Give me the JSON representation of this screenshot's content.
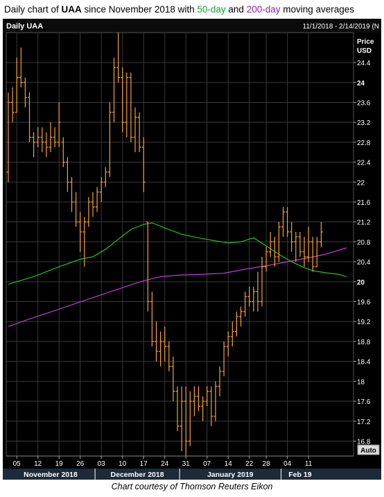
{
  "title": {
    "prefix": "Daily chart of ",
    "ticker": "UAA",
    "middle": " since November 2018 with ",
    "ma50_label": "50-day",
    "and_text": " and ",
    "ma200_label": "200-day",
    "suffix": " moving averages"
  },
  "caption": "Chart courtesy of Thomson Reuters Eikon",
  "panel": {
    "name": "Daily UAA",
    "range": "11/1/2018 - 2/14/2019 (N",
    "price_label": "Price",
    "currency_label": "USD",
    "auto_button": "Auto"
  },
  "colors": {
    "background": "#000000",
    "grid": "#3a3a3a",
    "bars": "#f7a431",
    "ma50": "#22c322",
    "ma200": "#c23ce0",
    "axis_text": "#ffffff"
  },
  "chart_data": {
    "type": "ohlc",
    "ylim": [
      16.5,
      25.0
    ],
    "y_ticks": [
      16.8,
      17.2,
      17.6,
      18,
      18.4,
      18.8,
      19.2,
      19.6,
      20,
      20.4,
      20.8,
      21.2,
      21.6,
      22,
      22.4,
      22.8,
      23.2,
      23.6,
      24,
      24.4
    ],
    "y_ticks_bold": [
      20,
      24
    ],
    "x_tick_labels": [
      "05",
      "12",
      "19",
      "26",
      "03",
      "10",
      "17",
      "24",
      "31",
      "07",
      "14",
      "22",
      "28",
      "04",
      "11"
    ],
    "x_tick_index": [
      2,
      7,
      12,
      17,
      22,
      27,
      32,
      37,
      42,
      47,
      52,
      57,
      61,
      66,
      71
    ],
    "month_labels": [
      {
        "label": "November 2018",
        "from": 0,
        "to": 20
      },
      {
        "label": "December 2018",
        "from": 21,
        "to": 40
      },
      {
        "label": "January 2019",
        "from": 41,
        "to": 64
      },
      {
        "label": "Feb 19",
        "from": 65,
        "to": 73
      }
    ],
    "bars": [
      {
        "o": 22.2,
        "h": 23.8,
        "l": 22.0,
        "c": 23.6
      },
      {
        "o": 23.6,
        "h": 23.9,
        "l": 23.2,
        "c": 23.4
      },
      {
        "o": 23.4,
        "h": 24.5,
        "l": 23.4,
        "c": 24.1
      },
      {
        "o": 24.1,
        "h": 24.7,
        "l": 23.9,
        "c": 24.0
      },
      {
        "o": 24.0,
        "h": 24.1,
        "l": 23.5,
        "c": 23.7
      },
      {
        "o": 23.7,
        "h": 23.8,
        "l": 22.8,
        "c": 22.9
      },
      {
        "o": 22.9,
        "h": 23.0,
        "l": 22.5,
        "c": 22.8
      },
      {
        "o": 22.8,
        "h": 23.1,
        "l": 22.7,
        "c": 22.9
      },
      {
        "o": 22.9,
        "h": 23.1,
        "l": 22.6,
        "c": 22.8
      },
      {
        "o": 22.8,
        "h": 23.0,
        "l": 22.5,
        "c": 22.7
      },
      {
        "o": 22.7,
        "h": 23.2,
        "l": 22.6,
        "c": 22.9
      },
      {
        "o": 22.9,
        "h": 23.1,
        "l": 22.7,
        "c": 22.8
      },
      {
        "o": 22.8,
        "h": 23.6,
        "l": 22.7,
        "c": 23.2
      },
      {
        "o": 22.8,
        "h": 22.9,
        "l": 22.3,
        "c": 22.4
      },
      {
        "o": 22.4,
        "h": 22.5,
        "l": 21.8,
        "c": 22.0
      },
      {
        "o": 22.0,
        "h": 22.1,
        "l": 21.4,
        "c": 21.6
      },
      {
        "o": 21.6,
        "h": 21.8,
        "l": 21.1,
        "c": 21.2
      },
      {
        "o": 21.2,
        "h": 21.4,
        "l": 20.6,
        "c": 21.0
      },
      {
        "o": 21.0,
        "h": 21.3,
        "l": 20.3,
        "c": 21.2
      },
      {
        "o": 21.2,
        "h": 21.7,
        "l": 21.1,
        "c": 21.6
      },
      {
        "o": 21.6,
        "h": 21.8,
        "l": 21.3,
        "c": 21.5
      },
      {
        "o": 21.5,
        "h": 21.9,
        "l": 21.4,
        "c": 21.8
      },
      {
        "o": 21.8,
        "h": 22.1,
        "l": 21.6,
        "c": 22.0
      },
      {
        "o": 22.0,
        "h": 22.3,
        "l": 21.9,
        "c": 22.2
      },
      {
        "o": 22.2,
        "h": 23.6,
        "l": 22.1,
        "c": 23.4
      },
      {
        "o": 23.4,
        "h": 24.5,
        "l": 23.2,
        "c": 24.3
      },
      {
        "o": 24.3,
        "h": 25.0,
        "l": 24.0,
        "c": 24.1
      },
      {
        "o": 24.1,
        "h": 24.3,
        "l": 23.0,
        "c": 23.2
      },
      {
        "o": 23.2,
        "h": 24.2,
        "l": 22.9,
        "c": 24.1
      },
      {
        "o": 24.1,
        "h": 24.2,
        "l": 22.8,
        "c": 22.9
      },
      {
        "o": 22.9,
        "h": 23.5,
        "l": 22.6,
        "c": 23.3
      },
      {
        "o": 23.3,
        "h": 23.4,
        "l": 22.6,
        "c": 22.7
      },
      {
        "o": 22.7,
        "h": 22.9,
        "l": 21.8,
        "c": 22.0
      },
      {
        "o": 21.2,
        "h": 21.2,
        "l": 19.4,
        "c": 19.6
      },
      {
        "o": 19.6,
        "h": 19.8,
        "l": 18.7,
        "c": 18.8
      },
      {
        "o": 18.8,
        "h": 19.2,
        "l": 18.4,
        "c": 18.6
      },
      {
        "o": 18.6,
        "h": 19.0,
        "l": 18.3,
        "c": 18.8
      },
      {
        "o": 18.8,
        "h": 19.1,
        "l": 18.4,
        "c": 18.7
      },
      {
        "o": 18.7,
        "h": 18.8,
        "l": 18.2,
        "c": 18.3
      },
      {
        "o": 18.3,
        "h": 18.5,
        "l": 17.6,
        "c": 17.8
      },
      {
        "o": 17.8,
        "h": 17.9,
        "l": 17.0,
        "c": 17.1
      },
      {
        "o": 17.1,
        "h": 17.9,
        "l": 16.6,
        "c": 17.6
      },
      {
        "o": 17.6,
        "h": 17.9,
        "l": 16.5,
        "c": 16.8
      },
      {
        "o": 16.8,
        "h": 17.8,
        "l": 16.7,
        "c": 17.6
      },
      {
        "o": 17.6,
        "h": 17.9,
        "l": 17.3,
        "c": 17.7
      },
      {
        "o": 17.7,
        "h": 17.9,
        "l": 17.4,
        "c": 17.5
      },
      {
        "o": 17.5,
        "h": 17.7,
        "l": 17.2,
        "c": 17.6
      },
      {
        "o": 17.6,
        "h": 17.9,
        "l": 17.5,
        "c": 17.8
      },
      {
        "o": 17.8,
        "h": 17.9,
        "l": 17.1,
        "c": 17.3
      },
      {
        "o": 17.3,
        "h": 18.0,
        "l": 17.2,
        "c": 17.9
      },
      {
        "o": 17.9,
        "h": 18.3,
        "l": 17.7,
        "c": 18.2
      },
      {
        "o": 18.2,
        "h": 18.8,
        "l": 18.1,
        "c": 18.7
      },
      {
        "o": 18.7,
        "h": 19.0,
        "l": 18.5,
        "c": 18.9
      },
      {
        "o": 18.9,
        "h": 19.2,
        "l": 18.7,
        "c": 19.0
      },
      {
        "o": 19.0,
        "h": 19.4,
        "l": 18.9,
        "c": 19.3
      },
      {
        "o": 19.3,
        "h": 19.5,
        "l": 19.1,
        "c": 19.4
      },
      {
        "o": 19.4,
        "h": 19.8,
        "l": 19.3,
        "c": 19.7
      },
      {
        "o": 19.7,
        "h": 19.9,
        "l": 19.5,
        "c": 19.6
      },
      {
        "o": 19.6,
        "h": 19.9,
        "l": 19.4,
        "c": 19.8
      },
      {
        "o": 19.8,
        "h": 20.2,
        "l": 19.4,
        "c": 19.6
      },
      {
        "o": 19.6,
        "h": 20.5,
        "l": 19.5,
        "c": 20.3
      },
      {
        "o": 20.3,
        "h": 20.7,
        "l": 20.2,
        "c": 20.6
      },
      {
        "o": 20.6,
        "h": 21.0,
        "l": 20.5,
        "c": 20.8
      },
      {
        "o": 20.8,
        "h": 20.9,
        "l": 20.3,
        "c": 20.5
      },
      {
        "o": 20.5,
        "h": 21.2,
        "l": 20.4,
        "c": 21.1
      },
      {
        "o": 21.1,
        "h": 21.5,
        "l": 20.9,
        "c": 21.4
      },
      {
        "o": 21.4,
        "h": 21.5,
        "l": 20.9,
        "c": 21.0
      },
      {
        "o": 21.0,
        "h": 21.2,
        "l": 20.6,
        "c": 20.8
      },
      {
        "o": 20.8,
        "h": 21.0,
        "l": 20.4,
        "c": 20.9
      },
      {
        "o": 20.9,
        "h": 21.0,
        "l": 20.5,
        "c": 20.6
      },
      {
        "o": 20.6,
        "h": 20.9,
        "l": 20.3,
        "c": 20.5
      },
      {
        "o": 20.5,
        "h": 21.1,
        "l": 20.4,
        "c": 20.8
      },
      {
        "o": 20.8,
        "h": 20.9,
        "l": 20.2,
        "c": 20.3
      },
      {
        "o": 20.3,
        "h": 20.9,
        "l": 20.3,
        "c": 20.8
      },
      {
        "o": 20.8,
        "h": 21.2,
        "l": 20.7,
        "c": 21.0
      }
    ],
    "ma50": {
      "label": "50-day",
      "points": [
        [
          0,
          19.95
        ],
        [
          6,
          20.1
        ],
        [
          12,
          20.3
        ],
        [
          17,
          20.45
        ],
        [
          20,
          20.5
        ],
        [
          23,
          20.65
        ],
        [
          26,
          20.85
        ],
        [
          29,
          21.05
        ],
        [
          32,
          21.15
        ],
        [
          34,
          21.18
        ],
        [
          37,
          21.08
        ],
        [
          41,
          20.95
        ],
        [
          45,
          20.88
        ],
        [
          49,
          20.82
        ],
        [
          52,
          20.78
        ],
        [
          55,
          20.8
        ],
        [
          58,
          20.88
        ],
        [
          61,
          20.72
        ],
        [
          64,
          20.55
        ],
        [
          67,
          20.4
        ],
        [
          70,
          20.28
        ],
        [
          72,
          20.22
        ],
        [
          75,
          20.18
        ],
        [
          78,
          20.15
        ],
        [
          80,
          20.1
        ]
      ]
    },
    "ma200": {
      "label": "200-day",
      "points": [
        [
          0,
          19.1
        ],
        [
          5,
          19.25
        ],
        [
          12,
          19.45
        ],
        [
          20,
          19.68
        ],
        [
          27,
          19.88
        ],
        [
          32,
          20.02
        ],
        [
          36,
          20.1
        ],
        [
          40,
          20.13
        ],
        [
          46,
          20.15
        ],
        [
          51,
          20.17
        ],
        [
          56,
          20.25
        ],
        [
          61,
          20.32
        ],
        [
          66,
          20.4
        ],
        [
          71,
          20.48
        ],
        [
          75,
          20.55
        ],
        [
          80,
          20.68
        ]
      ]
    }
  }
}
